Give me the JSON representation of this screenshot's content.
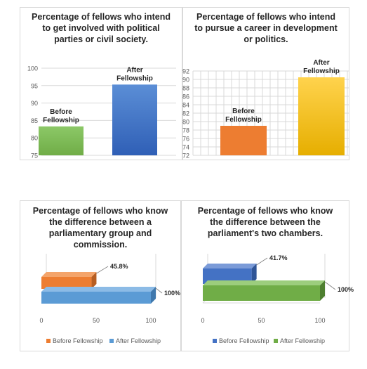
{
  "colors": {
    "green": "#70ad47",
    "green_light": "#8cc867",
    "blue_grad_top": "#5b8ed6",
    "blue_grad_bottom": "#2f5fb6",
    "orange_grad": "#ed7d31",
    "yellow_grad_top": "#ffd34d",
    "yellow_grad_bottom": "#e6ae00",
    "orange": "#ed7d31",
    "light_blue": "#5b9bd5",
    "dark_blue": "#4472c4",
    "green_3d": "#70ad47",
    "grid": "#d9d9d9",
    "axis_text": "#595959"
  },
  "chart_data": [
    {
      "type": "bar",
      "title": "Percentage of fellows who intend\nto get involved with political\nparties or civil society.",
      "categories": [
        "Before\nFellowship",
        "After\nFellowship"
      ],
      "values": [
        83.3,
        95.3
      ],
      "ylim": [
        75,
        100
      ],
      "yticks": [
        75,
        80,
        85,
        90,
        95,
        100
      ],
      "grid": true
    },
    {
      "type": "bar",
      "title": "Percentage of fellows who intend\nto pursue a career in development\nor politics.",
      "categories": [
        "Before\nFellowship",
        "After\nFellowship"
      ],
      "values": [
        79,
        90.5
      ],
      "ylim": [
        72,
        92
      ],
      "yticks": [
        72,
        74,
        76,
        78,
        80,
        82,
        84,
        86,
        88,
        90,
        92
      ],
      "grid": true
    },
    {
      "type": "bar",
      "orientation": "horizontal",
      "title": "Percentage of fellows who know\nthe difference between a\nparliamentary group and\ncommission.",
      "series": [
        {
          "name": "Before Fellowship",
          "values": [
            45.8
          ],
          "label": "45.8%"
        },
        {
          "name": "After Fellowship",
          "values": [
            100
          ],
          "label": "100%"
        }
      ],
      "xlim": [
        0,
        100
      ],
      "xticks": [
        0,
        50,
        100
      ],
      "legend": "bottom"
    },
    {
      "type": "bar",
      "orientation": "horizontal",
      "title": "Percentage of fellows who know\nthe difference between the\nparliament's two chambers.",
      "series": [
        {
          "name": "Before Fellowship",
          "values": [
            41.7
          ],
          "label": "41.7%"
        },
        {
          "name": "After Fellowship",
          "values": [
            100
          ],
          "label": "100%"
        }
      ],
      "xlim": [
        0,
        100
      ],
      "xticks": [
        0,
        50,
        100
      ],
      "legend": "bottom"
    }
  ]
}
